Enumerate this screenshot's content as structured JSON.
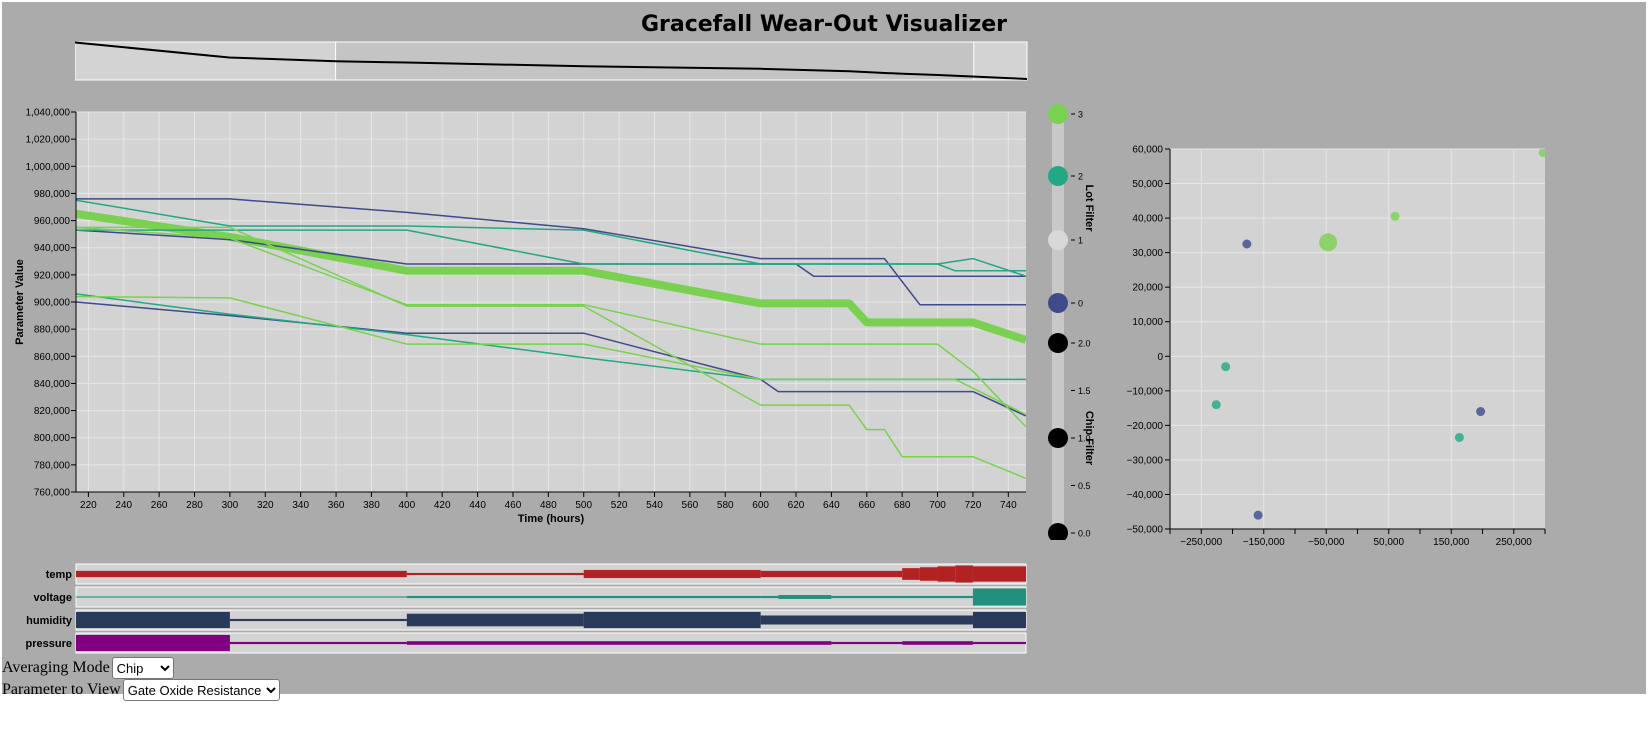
{
  "title": "Gracefall Wear-Out Visualizer",
  "colors": {
    "lot0": "#3f4a8a",
    "lot1": "#d8d8d8",
    "lot2": "#22a884",
    "lot3": "#7ad151",
    "chip": "#000000"
  },
  "chart_data": [
    {
      "type": "line",
      "xlabel": "Time (hours)",
      "ylabel": "Parameter Value",
      "xlim": [
        213,
        750
      ],
      "ylim": [
        760000,
        1040000
      ],
      "xticks": [
        220,
        240,
        260,
        280,
        300,
        320,
        340,
        360,
        380,
        400,
        420,
        440,
        460,
        480,
        500,
        520,
        540,
        560,
        580,
        600,
        620,
        640,
        660,
        680,
        700,
        720,
        740
      ],
      "yticks": [
        760000,
        780000,
        800000,
        820000,
        840000,
        860000,
        880000,
        900000,
        920000,
        940000,
        960000,
        980000,
        1000000,
        1020000,
        1040000
      ],
      "grid": true,
      "series": [
        {
          "lot": 3,
          "width": 8,
          "x": [
            213,
            300,
            400,
            500,
            600,
            650,
            660,
            720,
            750
          ],
          "y": [
            965000,
            948000,
            923000,
            923000,
            899000,
            899000,
            885000,
            885000,
            872000
          ]
        },
        {
          "lot": 0,
          "width": 1.5,
          "x": [
            213,
            300,
            400,
            500,
            600,
            670,
            690,
            720,
            750
          ],
          "y": [
            976000,
            976000,
            966000,
            954000,
            932000,
            932000,
            898000,
            898000,
            898000
          ]
        },
        {
          "lot": 0,
          "width": 1.5,
          "x": [
            213,
            300,
            400,
            500,
            600,
            620,
            630,
            720,
            750
          ],
          "y": [
            953000,
            946000,
            928000,
            928000,
            928000,
            928000,
            919000,
            919000,
            919000
          ]
        },
        {
          "lot": 0,
          "width": 1.5,
          "x": [
            213,
            300,
            400,
            500,
            600,
            610,
            720,
            750
          ],
          "y": [
            900000,
            890000,
            877000,
            877000,
            843000,
            834000,
            834000,
            816000
          ]
        },
        {
          "lot": 2,
          "width": 1.5,
          "x": [
            213,
            300,
            400,
            500,
            600,
            700,
            720,
            750
          ],
          "y": [
            975000,
            956000,
            956000,
            953000,
            928000,
            928000,
            932000,
            919000
          ]
        },
        {
          "lot": 2,
          "width": 1.5,
          "x": [
            213,
            300,
            400,
            500,
            600,
            700,
            710,
            750
          ],
          "y": [
            953000,
            953000,
            953000,
            928000,
            928000,
            928000,
            923000,
            923000
          ]
        },
        {
          "lot": 2,
          "width": 1.5,
          "x": [
            213,
            300,
            400,
            500,
            600,
            750
          ],
          "y": [
            906000,
            891000,
            876000,
            859000,
            843000,
            843000
          ]
        },
        {
          "lot": 3,
          "width": 1.5,
          "x": [
            213,
            300,
            400,
            500,
            600,
            700,
            720,
            750
          ],
          "y": [
            955000,
            947000,
            898000,
            898000,
            869000,
            869000,
            849000,
            808000
          ]
        },
        {
          "lot": 3,
          "width": 1.5,
          "x": [
            213,
            300,
            400,
            500,
            600,
            710,
            750
          ],
          "y": [
            904000,
            903000,
            869000,
            869000,
            843000,
            843000,
            817000
          ]
        },
        {
          "lot": 3,
          "width": 1.5,
          "x": [
            213,
            300,
            400,
            500,
            600,
            650,
            660,
            670,
            680,
            720,
            750
          ],
          "y": [
            955000,
            955000,
            897000,
            897000,
            824000,
            824000,
            806000,
            806000,
            786000,
            786000,
            770000
          ]
        }
      ]
    },
    {
      "type": "scatter",
      "xlim": [
        -300000,
        300000
      ],
      "ylim": [
        -50000,
        60000
      ],
      "xticks": [
        -250000,
        -150000,
        -50000,
        50000,
        150000,
        250000
      ],
      "yticks": [
        -50000,
        -40000,
        -30000,
        -20000,
        -10000,
        0,
        10000,
        20000,
        30000,
        40000,
        50000,
        60000
      ],
      "xticklabels": [
        "−250,000",
        "−150,000",
        "−50,000",
        "50,000",
        "150,000",
        "250,000"
      ],
      "yticklabels": [
        "−50,000",
        "−40,000",
        "−30,000",
        "−20,000",
        "−10,000",
        "0",
        "10,000",
        "20,000",
        "30,000",
        "40,000",
        "50,000",
        "60,000"
      ],
      "grid": true,
      "points": [
        {
          "x": 297000,
          "y": 59000,
          "lot": 3,
          "size": "small"
        },
        {
          "x": 60000,
          "y": 40500,
          "lot": 3,
          "size": "small"
        },
        {
          "x": -47000,
          "y": 33000,
          "lot": 3,
          "size": "large"
        },
        {
          "x": -177000,
          "y": 32500,
          "lot": 0,
          "size": "small"
        },
        {
          "x": -211000,
          "y": -3000,
          "lot": 2,
          "size": "small"
        },
        {
          "x": -226000,
          "y": -14000,
          "lot": 2,
          "size": "small"
        },
        {
          "x": 197000,
          "y": -16000,
          "lot": 0,
          "size": "small"
        },
        {
          "x": 163000,
          "y": -23500,
          "lot": 2,
          "size": "small"
        },
        {
          "x": -159000,
          "y": -46000,
          "lot": 0,
          "size": "small"
        }
      ]
    }
  ],
  "overview": {
    "x": [
      213,
      300,
      360,
      400,
      500,
      600,
      650,
      680,
      700,
      750
    ],
    "y": [
      1010000,
      950000,
      935000,
      930000,
      915000,
      905000,
      895000,
      885000,
      880000,
      864000
    ],
    "brush_start": 360,
    "brush_end": 720,
    "ymin": 860000,
    "ymax": 1012000
  },
  "lot_filter": {
    "label": "Lot Filter",
    "items": [
      {
        "lot": 3,
        "label": "3"
      },
      {
        "lot": 2,
        "label": "2"
      },
      {
        "lot": 1,
        "label": "1"
      },
      {
        "lot": 0,
        "label": "0"
      }
    ]
  },
  "chip_filter": {
    "label": "Chip Filter",
    "items": [
      "2.0",
      "1.5",
      "1.0",
      "0.5",
      "0.0"
    ],
    "handles": [
      2.0,
      1.0,
      0.0
    ]
  },
  "env": [
    {
      "label": "temp",
      "color": "#b22222",
      "segments": [
        {
          "x0": 213,
          "x1": 400,
          "h": 0.35
        },
        {
          "x0": 400,
          "x1": 500,
          "h": 0.12
        },
        {
          "x0": 500,
          "x1": 600,
          "h": 0.45
        },
        {
          "x0": 600,
          "x1": 680,
          "h": 0.35
        },
        {
          "x0": 680,
          "x1": 690,
          "h": 0.65
        },
        {
          "x0": 690,
          "x1": 700,
          "h": 0.75
        },
        {
          "x0": 700,
          "x1": 710,
          "h": 0.85
        },
        {
          "x0": 710,
          "x1": 720,
          "h": 0.95
        },
        {
          "x0": 720,
          "x1": 750,
          "h": 0.85
        }
      ]
    },
    {
      "label": "voltage",
      "color": "#22907f",
      "segments": [
        {
          "x0": 213,
          "x1": 400,
          "h": 0.06
        },
        {
          "x0": 400,
          "x1": 600,
          "h": 0.12
        },
        {
          "x0": 600,
          "x1": 610,
          "h": 0.12
        },
        {
          "x0": 610,
          "x1": 640,
          "h": 0.22
        },
        {
          "x0": 640,
          "x1": 720,
          "h": 0.12
        },
        {
          "x0": 720,
          "x1": 750,
          "h": 0.95
        }
      ]
    },
    {
      "label": "humidity",
      "color": "#2a3a5a",
      "segments": [
        {
          "x0": 213,
          "x1": 300,
          "h": 0.9
        },
        {
          "x0": 300,
          "x1": 400,
          "h": 0.12
        },
        {
          "x0": 400,
          "x1": 500,
          "h": 0.7
        },
        {
          "x0": 500,
          "x1": 600,
          "h": 0.9
        },
        {
          "x0": 600,
          "x1": 720,
          "h": 0.5
        },
        {
          "x0": 720,
          "x1": 750,
          "h": 0.9
        }
      ]
    },
    {
      "label": "pressure",
      "color": "#800080",
      "segments": [
        {
          "x0": 213,
          "x1": 300,
          "h": 0.9
        },
        {
          "x0": 300,
          "x1": 400,
          "h": 0.12
        },
        {
          "x0": 400,
          "x1": 640,
          "h": 0.2
        },
        {
          "x0": 640,
          "x1": 680,
          "h": 0.12
        },
        {
          "x0": 680,
          "x1": 720,
          "h": 0.2
        },
        {
          "x0": 720,
          "x1": 750,
          "h": 0.12
        }
      ]
    }
  ],
  "controls": {
    "averaging_label": "Averaging Mode",
    "averaging_value": "Chip",
    "parameter_label": "Parameter to View",
    "parameter_value": "Gate Oxide Resistance"
  }
}
